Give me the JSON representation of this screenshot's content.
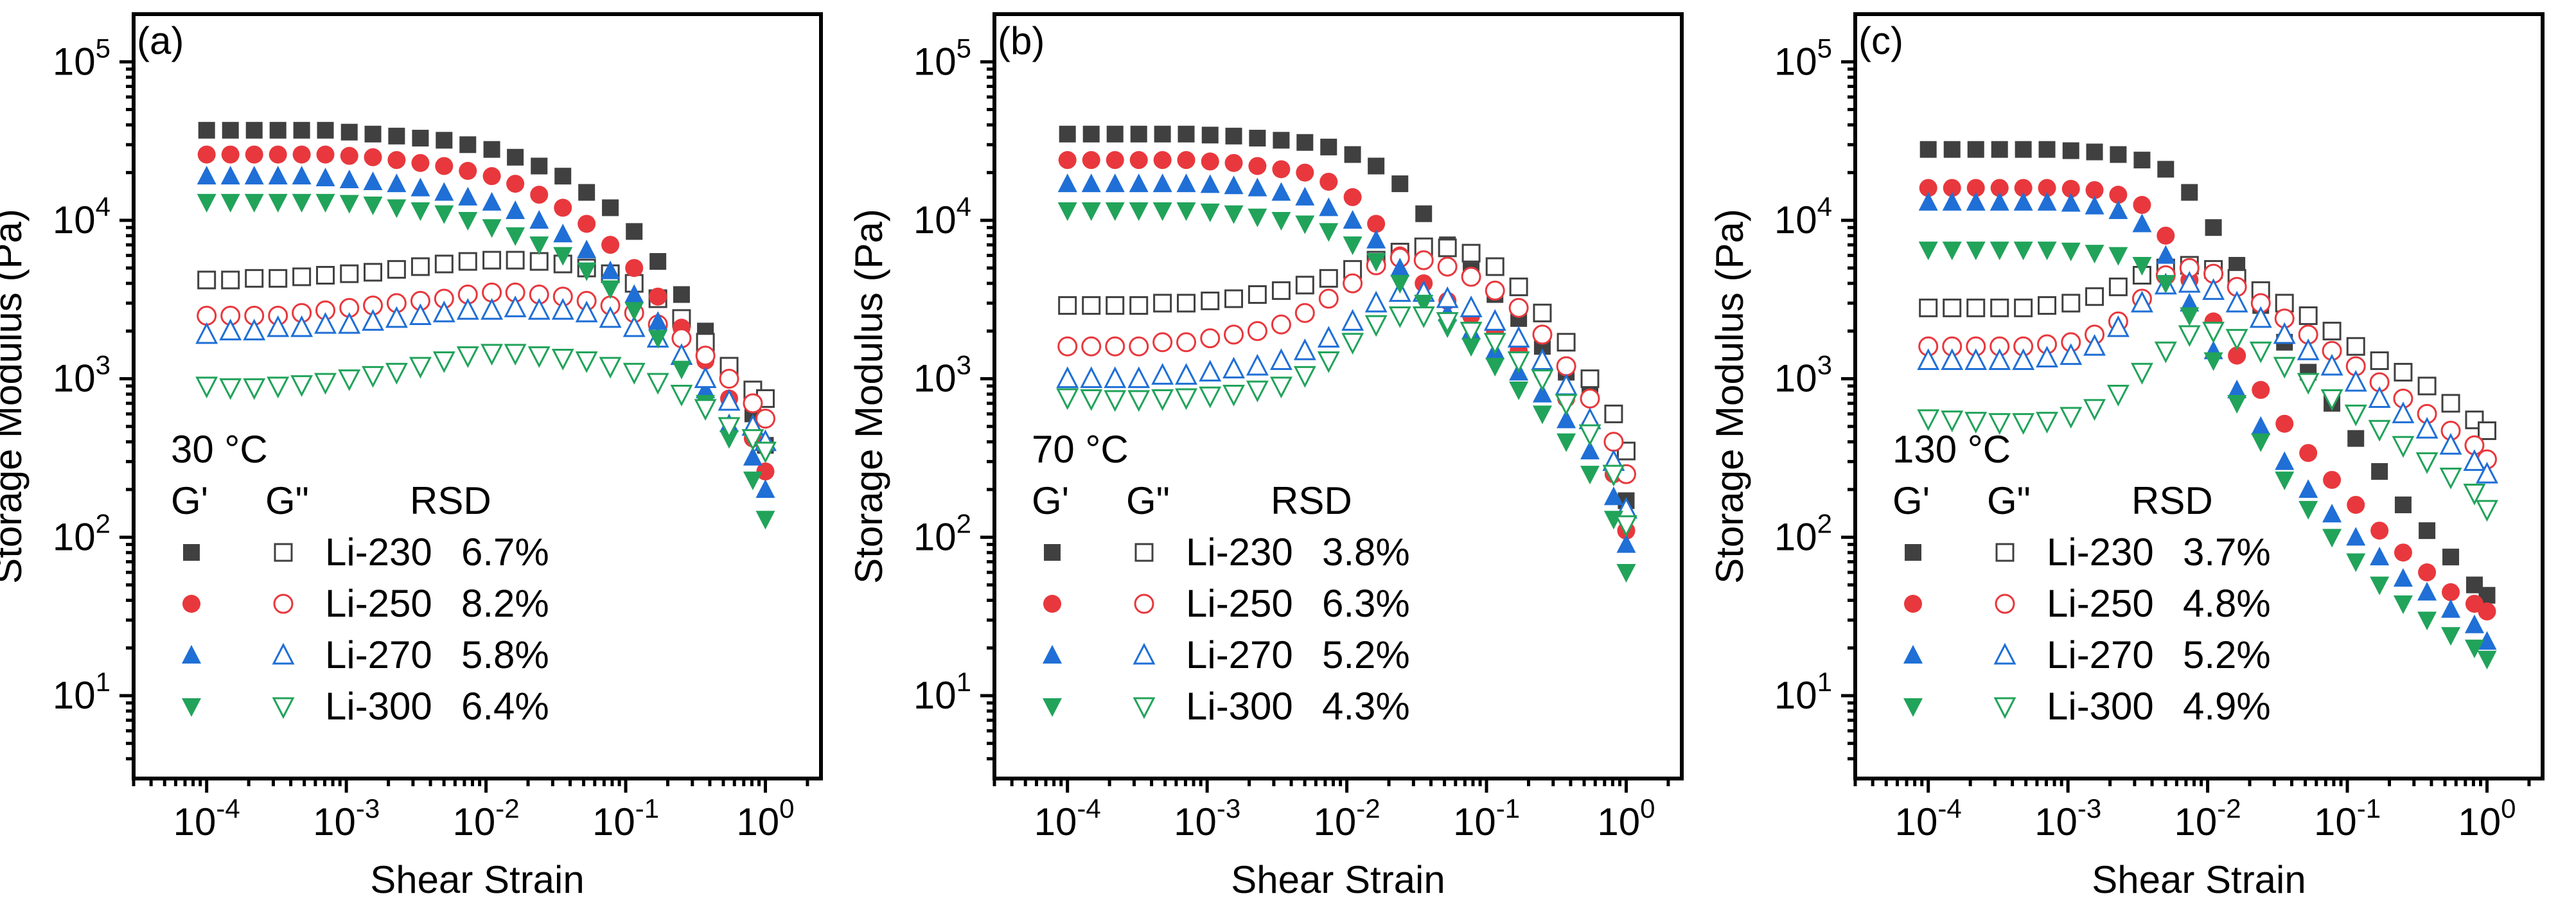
{
  "figure": {
    "x_axis_label": "Shear Strain",
    "y_axis_label": "Storage Modulus (Pa)",
    "x_ticks": [
      {
        "base": "10",
        "exp": "-4"
      },
      {
        "base": "10",
        "exp": "-3"
      },
      {
        "base": "10",
        "exp": "-2"
      },
      {
        "base": "10",
        "exp": "-1"
      },
      {
        "base": "10",
        "exp": "0"
      }
    ],
    "y_ticks": [
      {
        "base": "10",
        "exp": "1"
      },
      {
        "base": "10",
        "exp": "2"
      },
      {
        "base": "10",
        "exp": "3"
      },
      {
        "base": "10",
        "exp": "4"
      },
      {
        "base": "10",
        "exp": "5"
      }
    ],
    "legend_headers": {
      "gp": "G'",
      "gpp": "G\"",
      "rsd": "RSD"
    },
    "samples": [
      "Li-230",
      "Li-250",
      "Li-270",
      "Li-300"
    ],
    "colors": {
      "Li-230": "#404040",
      "Li-250": "#e8383d",
      "Li-270": "#1f6fd6",
      "Li-300": "#21a35a"
    },
    "markers": {
      "Li-230": "square",
      "Li-250": "circle",
      "Li-270": "triangle-up",
      "Li-300": "triangle-down"
    }
  },
  "chart_data": [
    {
      "type": "scatter",
      "panel_label": "(a)",
      "temperature_label": "30  °C",
      "xscale": "log",
      "yscale": "log",
      "xlim": [
        3e-05,
        2.5
      ],
      "ylim": [
        3,
        200000
      ],
      "xlabel": "Shear Strain",
      "ylabel": "Storage Modulus (Pa)",
      "rsd": [
        "6.7%",
        "8.2%",
        "5.8%",
        "6.4%"
      ],
      "strain": [
        0.0001,
        0.000148,
        0.000219,
        0.000324,
        0.000479,
        0.000708,
        0.00105,
        0.00155,
        0.00229,
        0.00339,
        0.00501,
        0.00741,
        0.011,
        0.0162,
        0.024,
        0.0355,
        0.0525,
        0.0776,
        0.115,
        0.17,
        0.251,
        0.372,
        0.55,
        0.813,
        1.0
      ],
      "series": [
        {
          "name": "Li-230 G'",
          "sample": "Li-230",
          "modulus": "G'",
          "values": [
            37000,
            37000,
            37000,
            37000,
            37000,
            37000,
            36000,
            35000,
            34000,
            33000,
            32000,
            30000,
            28000,
            25000,
            22000,
            19000,
            15000,
            12000,
            8500,
            5500,
            3400,
            2000,
            1100,
            600,
            380
          ]
        },
        {
          "name": "Li-230 G\"",
          "sample": "Li-230",
          "modulus": "G\"",
          "values": [
            4200,
            4200,
            4300,
            4300,
            4400,
            4500,
            4600,
            4700,
            4900,
            5100,
            5300,
            5500,
            5600,
            5600,
            5500,
            5300,
            5000,
            4600,
            4000,
            3200,
            2400,
            1700,
            1200,
            850,
            750
          ]
        },
        {
          "name": "Li-250 G'",
          "sample": "Li-250",
          "modulus": "G'",
          "values": [
            26000,
            26000,
            26000,
            26000,
            26000,
            26000,
            25500,
            25000,
            24000,
            23000,
            22000,
            20500,
            19000,
            17000,
            14500,
            12000,
            9500,
            7000,
            5000,
            3300,
            2100,
            1300,
            750,
            420,
            260
          ]
        },
        {
          "name": "Li-250 G\"",
          "sample": "Li-250",
          "modulus": "G\"",
          "values": [
            2500,
            2500,
            2500,
            2500,
            2600,
            2700,
            2800,
            2900,
            3000,
            3100,
            3200,
            3400,
            3500,
            3500,
            3400,
            3300,
            3100,
            2900,
            2600,
            2200,
            1800,
            1400,
            1000,
            700,
            560
          ]
        },
        {
          "name": "Li-270 G'",
          "sample": "Li-270",
          "modulus": "G'",
          "values": [
            19000,
            19000,
            19000,
            19000,
            19000,
            18500,
            18000,
            17500,
            17000,
            16000,
            15000,
            14000,
            13000,
            11500,
            10000,
            8200,
            6500,
            4800,
            3400,
            2300,
            1400,
            850,
            520,
            320,
            200
          ]
        },
        {
          "name": "Li-270 G\"",
          "sample": "Li-270",
          "modulus": "G\"",
          "values": [
            1900,
            2000,
            2000,
            2100,
            2100,
            2200,
            2200,
            2300,
            2400,
            2500,
            2600,
            2700,
            2700,
            2800,
            2700,
            2700,
            2600,
            2400,
            2100,
            1800,
            1400,
            1000,
            720,
            500,
            400
          ]
        },
        {
          "name": "Li-300 G'",
          "sample": "Li-300",
          "modulus": "G'",
          "values": [
            13000,
            13000,
            13000,
            13000,
            13000,
            13000,
            12800,
            12500,
            12000,
            11500,
            11000,
            10000,
            9000,
            8000,
            7000,
            6000,
            4800,
            3700,
            2700,
            1800,
            1150,
            700,
            420,
            230,
            130
          ]
        },
        {
          "name": "Li-300 G\"",
          "sample": "Li-300",
          "modulus": "G\"",
          "values": [
            900,
            880,
            880,
            900,
            920,
            950,
            1000,
            1050,
            1100,
            1200,
            1300,
            1400,
            1450,
            1450,
            1400,
            1350,
            1300,
            1200,
            1100,
            950,
            800,
            650,
            500,
            420,
            350
          ]
        }
      ]
    },
    {
      "type": "scatter",
      "panel_label": "(b)",
      "temperature_label": "70 °C",
      "xscale": "log",
      "yscale": "log",
      "xlim": [
        3e-05,
        2.5
      ],
      "ylim": [
        3,
        200000
      ],
      "xlabel": "Shear Strain",
      "ylabel": "Storage Modulus (Pa)",
      "rsd": [
        "3.8%",
        "6.3%",
        "5.2%",
        "4.3%"
      ],
      "strain": [
        0.0001,
        0.000148,
        0.000219,
        0.000324,
        0.000479,
        0.000708,
        0.00105,
        0.00155,
        0.00229,
        0.00339,
        0.00501,
        0.00741,
        0.011,
        0.0162,
        0.024,
        0.0355,
        0.0525,
        0.0776,
        0.115,
        0.17,
        0.251,
        0.372,
        0.55,
        0.813,
        1.0
      ],
      "series": [
        {
          "name": "Li-230 G'",
          "sample": "Li-230",
          "modulus": "G'",
          "values": [
            35000,
            35000,
            35000,
            35000,
            35000,
            35000,
            34500,
            34000,
            33000,
            32000,
            31000,
            29000,
            26000,
            22000,
            17000,
            11000,
            7000,
            4800,
            3400,
            2400,
            1600,
            1100,
            800,
            600,
            170
          ]
        },
        {
          "name": "Li-230 G\"",
          "sample": "Li-230",
          "modulus": "G\"",
          "values": [
            2900,
            2900,
            2900,
            2900,
            3000,
            3000,
            3100,
            3200,
            3400,
            3600,
            3900,
            4300,
            4900,
            5600,
            6300,
            6800,
            6700,
            6200,
            5100,
            3800,
            2600,
            1700,
            1000,
            600,
            350
          ]
        },
        {
          "name": "Li-250 G'",
          "sample": "Li-250",
          "modulus": "G'",
          "values": [
            24000,
            24000,
            24000,
            24000,
            24000,
            24000,
            23500,
            23000,
            22000,
            21000,
            20000,
            17500,
            14000,
            9500,
            6000,
            4000,
            3100,
            2500,
            2000,
            1500,
            1100,
            750,
            500,
            250,
            110
          ]
        },
        {
          "name": "Li-250 G\"",
          "sample": "Li-250",
          "modulus": "G\"",
          "values": [
            1600,
            1600,
            1600,
            1600,
            1700,
            1700,
            1800,
            1900,
            2000,
            2200,
            2600,
            3200,
            4000,
            5200,
            5800,
            5600,
            5100,
            4400,
            3600,
            2800,
            1900,
            1200,
            750,
            400,
            250
          ]
        },
        {
          "name": "Li-270 G'",
          "sample": "Li-270",
          "modulus": "G'",
          "values": [
            17000,
            17000,
            17000,
            17000,
            17000,
            17000,
            16800,
            16500,
            16000,
            15000,
            14000,
            12000,
            10000,
            7500,
            5000,
            3500,
            2600,
            2000,
            1500,
            1100,
            800,
            550,
            350,
            180,
            90
          ]
        },
        {
          "name": "Li-270 G\"",
          "sample": "Li-270",
          "modulus": "G\"",
          "values": [
            1000,
            1000,
            1000,
            1000,
            1050,
            1050,
            1100,
            1150,
            1200,
            1300,
            1500,
            1800,
            2300,
            3000,
            3500,
            3500,
            3200,
            2800,
            2300,
            1800,
            1300,
            900,
            550,
            300,
            150
          ]
        },
        {
          "name": "Li-300 G'",
          "sample": "Li-300",
          "modulus": "G'",
          "values": [
            11500,
            11500,
            11500,
            11500,
            11500,
            11500,
            11300,
            11000,
            10500,
            10000,
            9500,
            8500,
            7000,
            5500,
            4000,
            3000,
            2100,
            1600,
            1200,
            850,
            600,
            400,
            250,
            130,
            60
          ]
        },
        {
          "name": "Li-300 G\"",
          "sample": "Li-300",
          "modulus": "G\"",
          "values": [
            760,
            750,
            740,
            740,
            750,
            760,
            780,
            800,
            850,
            900,
            1050,
            1300,
            1700,
            2200,
            2500,
            2500,
            2300,
            2000,
            1700,
            1300,
            1000,
            700,
            450,
            250,
            120
          ]
        }
      ]
    },
    {
      "type": "scatter",
      "panel_label": "(c)",
      "temperature_label": "130 °C",
      "xscale": "log",
      "yscale": "log",
      "xlim": [
        3e-05,
        2.5
      ],
      "ylim": [
        3,
        200000
      ],
      "xlabel": "Shear Strain",
      "ylabel": "Storage Modulus (Pa)",
      "rsd": [
        "3.7%",
        "4.8%",
        "5.2%",
        "4.9%"
      ],
      "strain": [
        0.0001,
        0.000148,
        0.000219,
        0.000324,
        0.000479,
        0.000708,
        0.00105,
        0.00155,
        0.00229,
        0.00339,
        0.00501,
        0.00741,
        0.011,
        0.0162,
        0.024,
        0.0355,
        0.0525,
        0.0776,
        0.115,
        0.17,
        0.251,
        0.372,
        0.55,
        0.813,
        1.0
      ],
      "series": [
        {
          "name": "Li-230 G'",
          "sample": "Li-230",
          "modulus": "G'",
          "values": [
            28000,
            28000,
            28000,
            28000,
            28000,
            28000,
            27500,
            27000,
            26000,
            24000,
            21000,
            15000,
            9000,
            5200,
            2900,
            1700,
            1100,
            700,
            420,
            260,
            160,
            110,
            75,
            50,
            43
          ]
        },
        {
          "name": "Li-230 G\"",
          "sample": "Li-230",
          "modulus": "G\"",
          "values": [
            2800,
            2800,
            2800,
            2800,
            2800,
            2900,
            3000,
            3300,
            3800,
            4500,
            5000,
            5200,
            4900,
            4300,
            3600,
            3000,
            2500,
            2000,
            1600,
            1300,
            1100,
            900,
            700,
            550,
            470
          ]
        },
        {
          "name": "Li-250 G'",
          "sample": "Li-250",
          "modulus": "G'",
          "values": [
            16000,
            16000,
            16000,
            16000,
            16000,
            16000,
            15800,
            15500,
            14500,
            12500,
            8000,
            4200,
            2300,
            1400,
            850,
            520,
            340,
            230,
            160,
            110,
            80,
            60,
            45,
            38,
            34
          ]
        },
        {
          "name": "Li-250 G\"",
          "sample": "Li-250",
          "modulus": "G\"",
          "values": [
            1600,
            1600,
            1600,
            1600,
            1600,
            1650,
            1700,
            1900,
            2300,
            3200,
            4500,
            5000,
            4600,
            3800,
            3000,
            2400,
            1900,
            1500,
            1200,
            950,
            750,
            600,
            470,
            380,
            310
          ]
        },
        {
          "name": "Li-270 G'",
          "sample": "Li-270",
          "modulus": "G'",
          "values": [
            13000,
            13000,
            13000,
            13000,
            13000,
            13000,
            12800,
            12300,
            11500,
            9500,
            6000,
            3000,
            1500,
            850,
            500,
            300,
            200,
            140,
            100,
            75,
            55,
            45,
            35,
            28,
            22
          ]
        },
        {
          "name": "Li-270 G\"",
          "sample": "Li-270",
          "modulus": "G\"",
          "values": [
            1300,
            1300,
            1300,
            1300,
            1300,
            1350,
            1400,
            1600,
            2100,
            3000,
            3900,
            4000,
            3600,
            3000,
            2400,
            1900,
            1500,
            1200,
            950,
            750,
            600,
            480,
            380,
            300,
            250
          ]
        },
        {
          "name": "Li-300 G'",
          "sample": "Li-300",
          "modulus": "G'",
          "values": [
            6500,
            6500,
            6500,
            6500,
            6500,
            6500,
            6400,
            6200,
            6000,
            5200,
            4000,
            2500,
            1300,
            700,
            400,
            230,
            150,
            100,
            70,
            50,
            38,
            30,
            24,
            20,
            17
          ]
        },
        {
          "name": "Li-300 G\"",
          "sample": "Li-300",
          "modulus": "G\"",
          "values": [
            560,
            550,
            540,
            530,
            530,
            540,
            580,
            650,
            800,
            1100,
            1500,
            1900,
            2000,
            1800,
            1500,
            1200,
            950,
            750,
            600,
            480,
            380,
            300,
            240,
            190,
            150
          ]
        }
      ]
    }
  ]
}
